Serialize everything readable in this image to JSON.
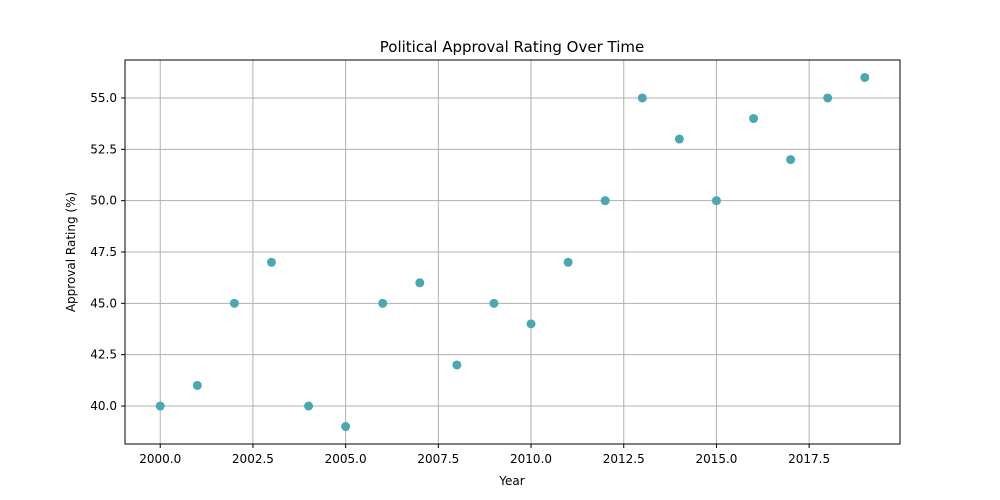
{
  "chart_data": {
    "type": "scatter",
    "title": "Political Approval Rating Over Time",
    "xlabel": "Year",
    "ylabel": "Approval Rating (%)",
    "grid": true,
    "xlim": [
      1999.05,
      2019.95
    ],
    "ylim": [
      38.15,
      56.85
    ],
    "x_ticks": [
      2000.0,
      2002.5,
      2005.0,
      2007.5,
      2010.0,
      2012.5,
      2015.0,
      2017.5
    ],
    "x_tick_labels": [
      "2000.0",
      "2002.5",
      "2005.0",
      "2007.5",
      "2010.0",
      "2012.5",
      "2015.0",
      "2017.5"
    ],
    "y_ticks": [
      40.0,
      42.5,
      45.0,
      47.5,
      50.0,
      52.5,
      55.0
    ],
    "y_tick_labels": [
      "40.0",
      "42.5",
      "45.0",
      "47.5",
      "50.0",
      "52.5",
      "55.0"
    ],
    "marker_color": "#4aa8b2",
    "series": [
      {
        "x": [
          2000,
          2001,
          2002,
          2003,
          2004,
          2005,
          2006,
          2007,
          2008,
          2009,
          2010,
          2011,
          2012,
          2013,
          2014,
          2015,
          2016,
          2017,
          2018,
          2019
        ],
        "y": [
          40,
          41,
          45,
          47,
          40,
          39,
          45,
          46,
          42,
          45,
          44,
          47,
          50,
          55,
          53,
          50,
          54,
          52,
          55,
          56
        ]
      }
    ]
  }
}
